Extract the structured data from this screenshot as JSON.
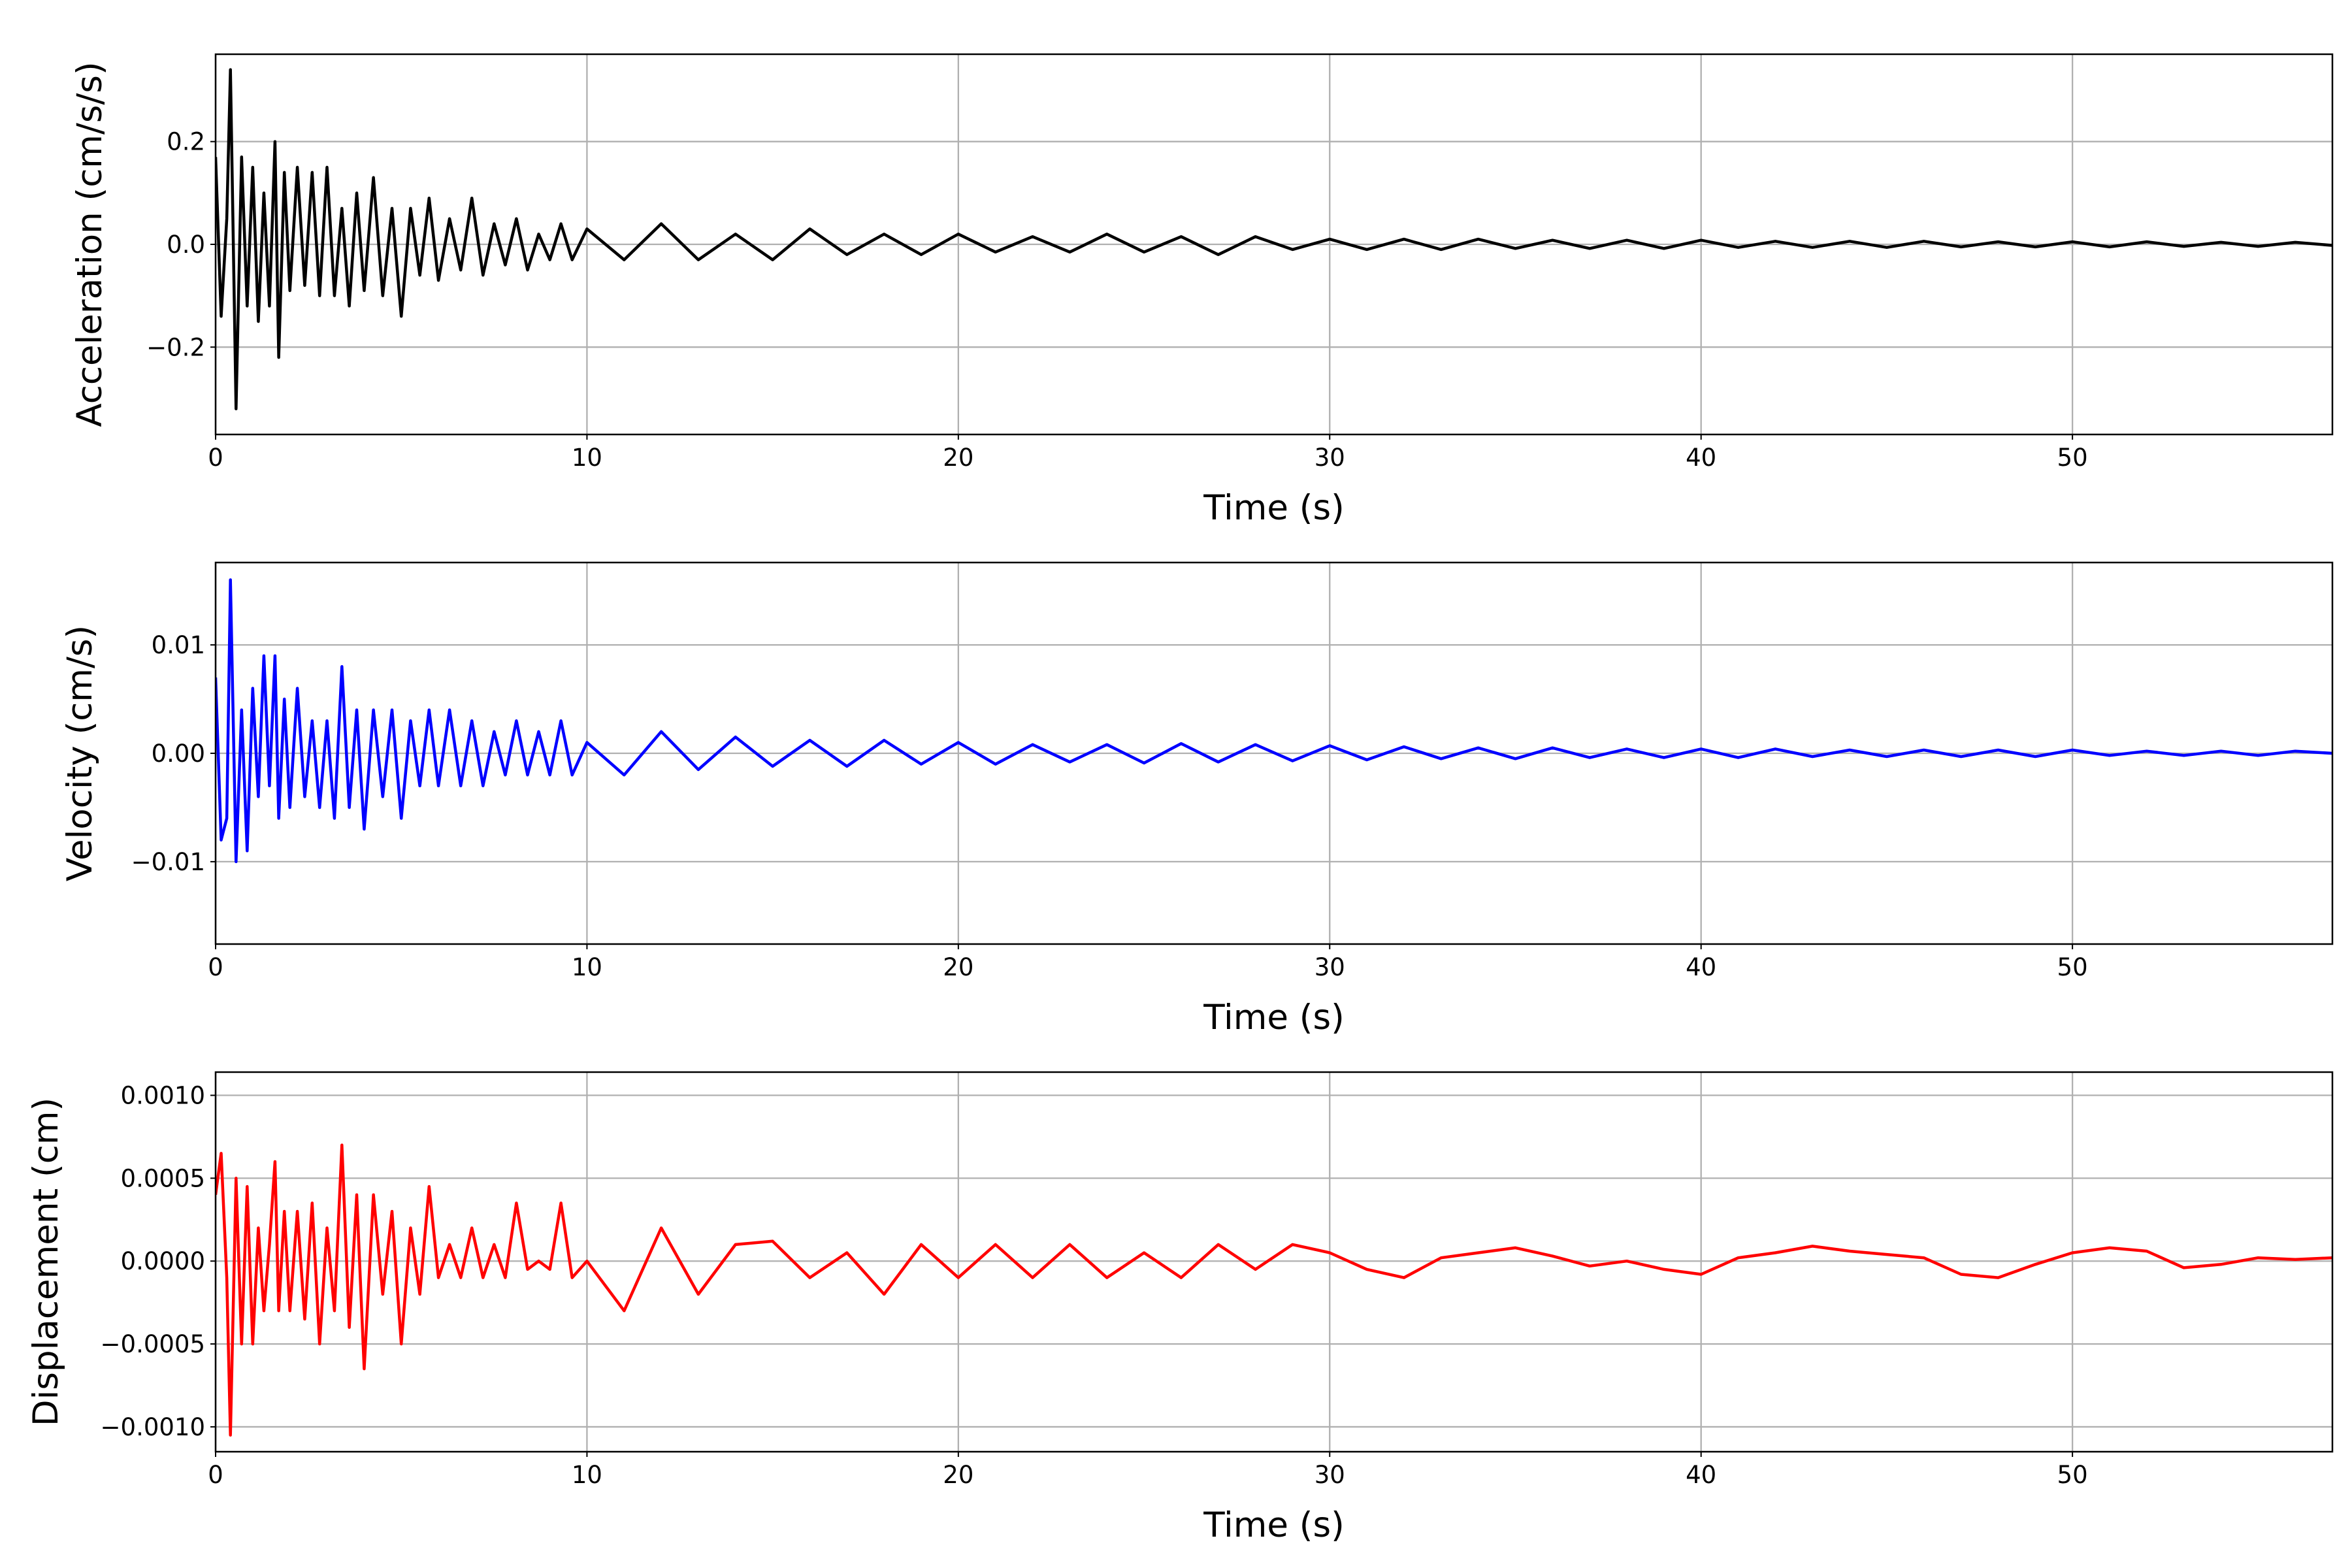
{
  "chart_data": [
    {
      "type": "line",
      "title": "",
      "xlabel": "Time (s)",
      "ylabel": "Acceleration (cm/s/s)",
      "xlim": [
        0,
        57
      ],
      "ylim": [
        -0.37,
        0.37
      ],
      "grid": true,
      "color": "#000000",
      "xticks": [
        0,
        10,
        20,
        30,
        40,
        50
      ],
      "xtick_labels": [
        "0",
        "10",
        "20",
        "30",
        "40",
        "50"
      ],
      "yticks": [
        0.2,
        0.0,
        -0.2
      ],
      "ytick_labels": [
        "0.2",
        "0.0",
        "−0.2"
      ],
      "x": [
        0,
        0.15,
        0.3,
        0.4,
        0.55,
        0.7,
        0.85,
        1.0,
        1.15,
        1.3,
        1.45,
        1.6,
        1.7,
        1.85,
        2.0,
        2.2,
        2.4,
        2.6,
        2.8,
        3.0,
        3.2,
        3.4,
        3.6,
        3.8,
        4.0,
        4.25,
        4.5,
        4.75,
        5.0,
        5.25,
        5.5,
        5.75,
        6.0,
        6.3,
        6.6,
        6.9,
        7.2,
        7.5,
        7.8,
        8.1,
        8.4,
        8.7,
        9.0,
        9.3,
        9.6,
        10.0,
        11,
        12,
        13,
        14,
        15,
        16,
        17,
        18,
        19,
        20,
        21,
        22,
        23,
        24,
        25,
        26,
        27,
        28,
        29,
        30,
        31,
        32,
        33,
        34,
        35,
        36,
        37,
        38,
        39,
        40,
        41,
        42,
        43,
        44,
        45,
        46,
        47,
        48,
        49,
        50,
        51,
        52,
        53,
        54,
        55,
        56,
        57
      ],
      "y": [
        0.17,
        -0.14,
        0.05,
        0.34,
        -0.32,
        0.17,
        -0.12,
        0.15,
        -0.15,
        0.1,
        -0.12,
        0.2,
        -0.22,
        0.14,
        -0.09,
        0.15,
        -0.08,
        0.14,
        -0.1,
        0.15,
        -0.1,
        0.07,
        -0.12,
        0.1,
        -0.09,
        0.13,
        -0.1,
        0.07,
        -0.14,
        0.07,
        -0.06,
        0.09,
        -0.07,
        0.05,
        -0.05,
        0.09,
        -0.06,
        0.04,
        -0.04,
        0.05,
        -0.05,
        0.02,
        -0.03,
        0.04,
        -0.03,
        0.03,
        -0.03,
        0.04,
        -0.03,
        0.02,
        -0.03,
        0.03,
        -0.02,
        0.02,
        -0.02,
        0.02,
        -0.015,
        0.015,
        -0.015,
        0.02,
        -0.015,
        0.015,
        -0.02,
        0.015,
        -0.01,
        0.01,
        -0.01,
        0.01,
        -0.01,
        0.01,
        -0.008,
        0.008,
        -0.008,
        0.008,
        -0.008,
        0.008,
        -0.006,
        0.006,
        -0.006,
        0.006,
        -0.006,
        0.006,
        -0.005,
        0.005,
        -0.005,
        0.005,
        -0.005,
        0.005,
        -0.004,
        0.004,
        -0.004,
        0.004,
        -0.002
      ]
    },
    {
      "type": "line",
      "title": "",
      "xlabel": "Time (s)",
      "ylabel": "Velocity (cm/s)",
      "xlim": [
        0,
        57
      ],
      "ylim": [
        -0.0176,
        0.0176
      ],
      "grid": true,
      "color": "#0000ff",
      "xticks": [
        0,
        10,
        20,
        30,
        40,
        50
      ],
      "xtick_labels": [
        "0",
        "10",
        "20",
        "30",
        "40",
        "50"
      ],
      "yticks": [
        0.01,
        0.0,
        -0.01
      ],
      "ytick_labels": [
        "0.01",
        "0.00",
        "−0.01"
      ],
      "x": [
        0,
        0.15,
        0.3,
        0.4,
        0.55,
        0.7,
        0.85,
        1.0,
        1.15,
        1.3,
        1.45,
        1.6,
        1.7,
        1.85,
        2.0,
        2.2,
        2.4,
        2.6,
        2.8,
        3.0,
        3.2,
        3.4,
        3.6,
        3.8,
        4.0,
        4.25,
        4.5,
        4.75,
        5.0,
        5.25,
        5.5,
        5.75,
        6.0,
        6.3,
        6.6,
        6.9,
        7.2,
        7.5,
        7.8,
        8.1,
        8.4,
        8.7,
        9.0,
        9.3,
        9.6,
        10.0,
        11,
        12,
        13,
        14,
        15,
        16,
        17,
        18,
        19,
        20,
        21,
        22,
        23,
        24,
        25,
        26,
        27,
        28,
        29,
        30,
        31,
        32,
        33,
        34,
        35,
        36,
        37,
        38,
        39,
        40,
        41,
        42,
        43,
        44,
        45,
        46,
        47,
        48,
        49,
        50,
        51,
        52,
        53,
        54,
        55,
        56,
        57
      ],
      "y": [
        0.007,
        -0.008,
        -0.006,
        0.016,
        -0.01,
        0.004,
        -0.009,
        0.006,
        -0.004,
        0.009,
        -0.003,
        0.009,
        -0.006,
        0.005,
        -0.005,
        0.006,
        -0.004,
        0.003,
        -0.005,
        0.003,
        -0.006,
        0.008,
        -0.005,
        0.004,
        -0.007,
        0.004,
        -0.004,
        0.004,
        -0.006,
        0.003,
        -0.003,
        0.004,
        -0.003,
        0.004,
        -0.003,
        0.003,
        -0.003,
        0.002,
        -0.002,
        0.003,
        -0.002,
        0.002,
        -0.002,
        0.003,
        -0.002,
        0.001,
        -0.002,
        0.002,
        -0.0015,
        0.0015,
        -0.0012,
        0.0012,
        -0.0012,
        0.0012,
        -0.001,
        0.001,
        -0.001,
        0.0008,
        -0.0008,
        0.0008,
        -0.0009,
        0.0009,
        -0.0008,
        0.0008,
        -0.0007,
        0.0007,
        -0.0006,
        0.0006,
        -0.0005,
        0.0005,
        -0.0005,
        0.0005,
        -0.0004,
        0.0004,
        -0.0004,
        0.0004,
        -0.0004,
        0.0004,
        -0.0003,
        0.0003,
        -0.0003,
        0.0003,
        -0.0003,
        0.0003,
        -0.0003,
        0.0003,
        -0.0002,
        0.0002,
        -0.0002,
        0.0002,
        -0.0002,
        0.0002,
        0
      ]
    },
    {
      "type": "line",
      "title": "",
      "xlabel": "Time (s)",
      "ylabel": "Displacement (cm)",
      "xlim": [
        0,
        57
      ],
      "ylim": [
        -0.00115,
        0.00114
      ],
      "grid": true,
      "color": "#ff0000",
      "xticks": [
        0,
        10,
        20,
        30,
        40,
        50
      ],
      "xtick_labels": [
        "0",
        "10",
        "20",
        "30",
        "40",
        "50"
      ],
      "yticks": [
        0.001,
        0.0005,
        0.0,
        -0.0005,
        -0.001
      ],
      "ytick_labels": [
        "0.0010",
        "0.0005",
        "0.0000",
        "−0.0005",
        "−0.0010"
      ],
      "x": [
        0,
        0.15,
        0.3,
        0.4,
        0.55,
        0.7,
        0.85,
        1.0,
        1.15,
        1.3,
        1.45,
        1.6,
        1.7,
        1.85,
        2.0,
        2.2,
        2.4,
        2.6,
        2.8,
        3.0,
        3.2,
        3.4,
        3.6,
        3.8,
        4.0,
        4.25,
        4.5,
        4.75,
        5.0,
        5.25,
        5.5,
        5.75,
        6.0,
        6.3,
        6.6,
        6.9,
        7.2,
        7.5,
        7.8,
        8.1,
        8.4,
        8.7,
        9.0,
        9.3,
        9.6,
        10.0,
        11,
        12,
        13,
        14,
        15,
        16,
        17,
        18,
        19,
        20,
        21,
        22,
        23,
        24,
        25,
        26,
        27,
        28,
        29,
        30,
        31,
        32,
        33,
        34,
        35,
        36,
        37,
        38,
        39,
        40,
        41,
        42,
        43,
        44,
        45,
        46,
        47,
        48,
        49,
        50,
        51,
        52,
        53,
        54,
        55,
        56,
        57
      ],
      "y": [
        0.0004,
        0.00065,
        -0.0001,
        -0.00105,
        0.0005,
        -0.0005,
        0.00045,
        -0.0005,
        0.0002,
        -0.0003,
        0.0001,
        0.0006,
        -0.0003,
        0.0003,
        -0.0003,
        0.0003,
        -0.00035,
        0.00035,
        -0.0005,
        0.0002,
        -0.0003,
        0.0007,
        -0.0004,
        0.0004,
        -0.00065,
        0.0004,
        -0.0002,
        0.0003,
        -0.0005,
        0.0002,
        -0.0002,
        0.00045,
        -0.0001,
        0.0001,
        -0.0001,
        0.0002,
        -0.0001,
        0.0001,
        -0.0001,
        0.00035,
        -5e-05,
        0,
        -5e-05,
        0.00035,
        -0.0001,
        0,
        -0.0003,
        0.0002,
        -0.0002,
        0.0001,
        0.00012,
        -0.0001,
        5e-05,
        -0.0002,
        0.0001,
        -0.0001,
        0.0001,
        -0.0001,
        0.0001,
        -0.0001,
        5e-05,
        -0.0001,
        0.0001,
        -5e-05,
        0.0001,
        5e-05,
        -5e-05,
        -0.0001,
        2e-05,
        5e-05,
        8e-05,
        3e-05,
        -3e-05,
        0,
        -5e-05,
        -8e-05,
        2e-05,
        5e-05,
        9e-05,
        6e-05,
        4e-05,
        2e-05,
        -8e-05,
        -0.0001,
        -2e-05,
        5e-05,
        8e-05,
        6e-05,
        -4e-05,
        -2e-05,
        2e-05,
        1e-05,
        2e-05
      ]
    }
  ]
}
